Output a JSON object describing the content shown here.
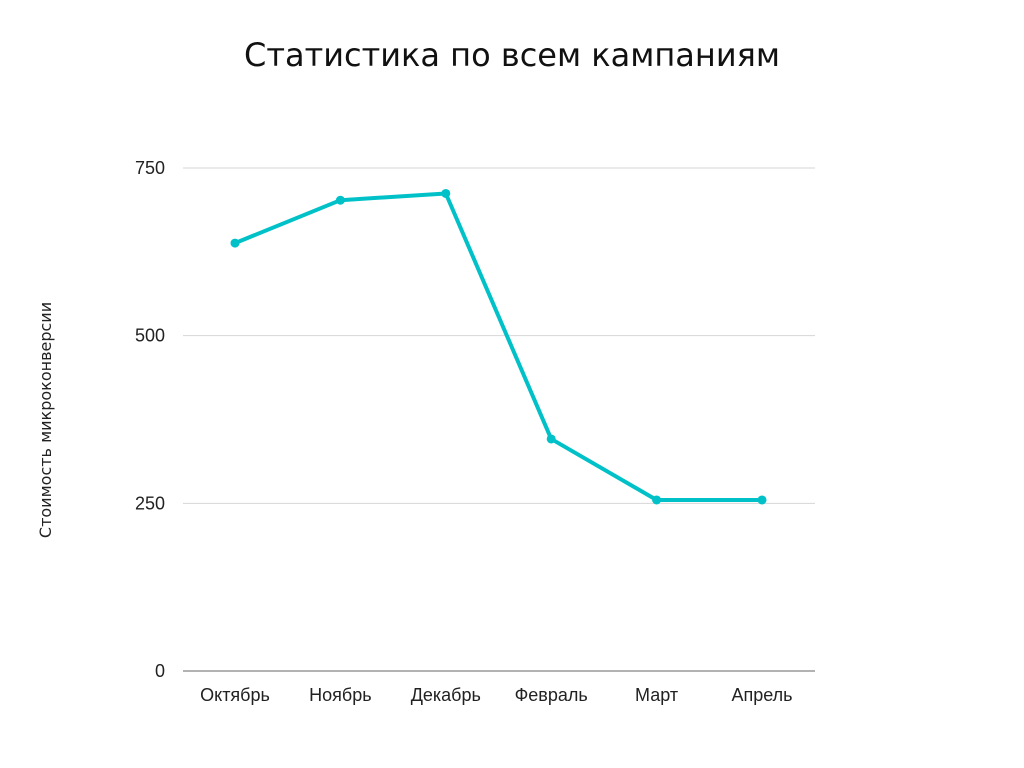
{
  "chart_data": {
    "type": "line",
    "title": "Статистика по всем кампаниям",
    "xlabel": "",
    "ylabel": "Стоимость микроконверсии",
    "categories": [
      "Октябрь",
      "Ноябрь",
      "Декабрь",
      "Февраль",
      "Март",
      "Апрель"
    ],
    "series": [
      {
        "values": [
          638,
          702,
          712,
          346,
          255,
          255
        ]
      }
    ],
    "ylim": [
      0,
      750
    ],
    "yticks": [
      "0",
      "250",
      "500",
      "750"
    ],
    "grid": true,
    "legend": "none",
    "colors": {
      "line": "#00c1c8",
      "grid": "#d6d6d6",
      "axis": "#999999"
    }
  }
}
